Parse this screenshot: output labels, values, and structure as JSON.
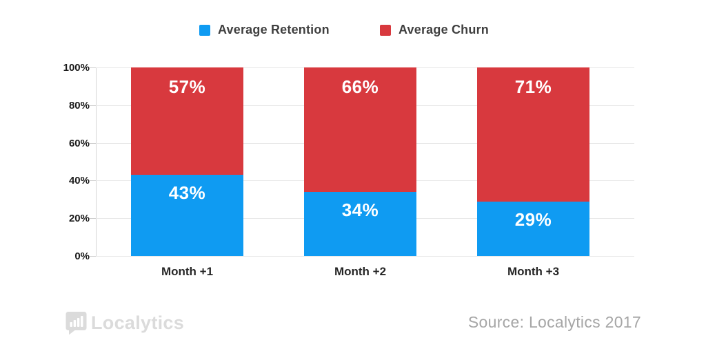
{
  "legend": {
    "items": [
      {
        "label": "Average Retention",
        "color": "#0f9bf2"
      },
      {
        "label": "Average Churn",
        "color": "#d8393e"
      }
    ]
  },
  "chart_data": {
    "type": "bar",
    "stacked": true,
    "categories": [
      "Month +1",
      "Month +2",
      "Month +3"
    ],
    "series": [
      {
        "name": "Average Retention",
        "color": "#0f9bf2",
        "values": [
          43,
          34,
          29
        ],
        "labels": [
          "43%",
          "34%",
          "29%"
        ]
      },
      {
        "name": "Average Churn",
        "color": "#d8393e",
        "values": [
          57,
          66,
          71
        ],
        "labels": [
          "57%",
          "66%",
          "71%"
        ]
      }
    ],
    "xlabel": "",
    "ylabel": "",
    "ylim": [
      0,
      100
    ],
    "y_ticks": [
      "0%",
      "20%",
      "40%",
      "60%",
      "80%",
      "100%"
    ],
    "grid": true,
    "legend_position": "top"
  },
  "footer": {
    "logo_text": "Localytics",
    "source": "Source: Localytics 2017"
  }
}
